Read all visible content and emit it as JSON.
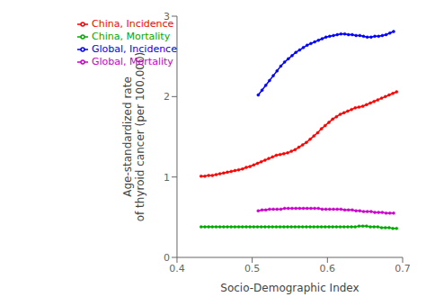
{
  "chart_data": {
    "type": "line",
    "xlabel": "Socio-Demographic Index",
    "ylabel": "Age-standardized rate\nof thyroid cancer (per 100,000)",
    "xlim": [
      0.4,
      0.7
    ],
    "ylim": [
      0,
      3
    ],
    "xticks": [
      0.4,
      0.5,
      0.6,
      0.7
    ],
    "yticks": [
      0,
      1,
      2,
      3
    ],
    "grid": false,
    "legend": "upper left",
    "marker": "point",
    "series": [
      {
        "name": "Global, Incidence",
        "color": "#0000ff",
        "x": [
          0.508,
          0.513,
          0.518,
          0.523,
          0.528,
          0.533,
          0.538,
          0.543,
          0.548,
          0.553,
          0.558,
          0.563,
          0.568,
          0.573,
          0.578,
          0.583,
          0.588,
          0.593,
          0.598,
          0.603,
          0.608,
          0.613,
          0.618,
          0.623,
          0.628,
          0.633,
          0.638,
          0.643,
          0.648,
          0.653,
          0.658,
          0.663,
          0.668,
          0.673,
          0.678,
          0.683,
          0.688
        ],
        "values": [
          2.02,
          2.08,
          2.14,
          2.2,
          2.26,
          2.32,
          2.38,
          2.43,
          2.47,
          2.51,
          2.55,
          2.58,
          2.61,
          2.64,
          2.66,
          2.68,
          2.7,
          2.72,
          2.74,
          2.75,
          2.76,
          2.77,
          2.78,
          2.78,
          2.77,
          2.77,
          2.76,
          2.76,
          2.75,
          2.74,
          2.74,
          2.75,
          2.75,
          2.76,
          2.77,
          2.79,
          2.81
        ]
      },
      {
        "name": "China, Incidence",
        "color": "#ff0000",
        "x": [
          0.432,
          0.437,
          0.442,
          0.447,
          0.452,
          0.457,
          0.462,
          0.467,
          0.472,
          0.477,
          0.482,
          0.487,
          0.492,
          0.497,
          0.502,
          0.507,
          0.512,
          0.517,
          0.522,
          0.527,
          0.532,
          0.537,
          0.542,
          0.547,
          0.552,
          0.557,
          0.562,
          0.567,
          0.572,
          0.577,
          0.582,
          0.587,
          0.592,
          0.597,
          0.602,
          0.607,
          0.612,
          0.617,
          0.622,
          0.627,
          0.632,
          0.637,
          0.642,
          0.647,
          0.652,
          0.657,
          0.662,
          0.667,
          0.672,
          0.677,
          0.682,
          0.687,
          0.692
        ],
        "values": [
          1.01,
          1.01,
          1.02,
          1.02,
          1.03,
          1.04,
          1.05,
          1.06,
          1.07,
          1.08,
          1.09,
          1.1,
          1.12,
          1.13,
          1.15,
          1.17,
          1.19,
          1.21,
          1.23,
          1.25,
          1.27,
          1.28,
          1.29,
          1.3,
          1.32,
          1.34,
          1.37,
          1.4,
          1.43,
          1.47,
          1.51,
          1.55,
          1.6,
          1.64,
          1.68,
          1.72,
          1.75,
          1.78,
          1.8,
          1.82,
          1.84,
          1.86,
          1.87,
          1.88,
          1.9,
          1.92,
          1.94,
          1.96,
          1.98,
          2.0,
          2.02,
          2.04,
          2.06
        ]
      },
      {
        "name": "China, Mortality",
        "color": "#00aa00",
        "x": [
          0.432,
          0.437,
          0.442,
          0.447,
          0.452,
          0.457,
          0.462,
          0.467,
          0.472,
          0.477,
          0.482,
          0.487,
          0.492,
          0.497,
          0.502,
          0.507,
          0.512,
          0.517,
          0.522,
          0.527,
          0.532,
          0.537,
          0.542,
          0.547,
          0.552,
          0.557,
          0.562,
          0.567,
          0.572,
          0.577,
          0.582,
          0.587,
          0.592,
          0.597,
          0.602,
          0.607,
          0.612,
          0.617,
          0.622,
          0.627,
          0.632,
          0.637,
          0.642,
          0.647,
          0.652,
          0.657,
          0.662,
          0.667,
          0.672,
          0.677,
          0.682,
          0.687,
          0.692
        ],
        "values": [
          0.38,
          0.38,
          0.38,
          0.38,
          0.38,
          0.38,
          0.38,
          0.38,
          0.38,
          0.38,
          0.38,
          0.38,
          0.38,
          0.38,
          0.38,
          0.38,
          0.38,
          0.38,
          0.38,
          0.38,
          0.38,
          0.38,
          0.38,
          0.38,
          0.38,
          0.38,
          0.38,
          0.38,
          0.38,
          0.38,
          0.38,
          0.38,
          0.38,
          0.38,
          0.38,
          0.38,
          0.38,
          0.38,
          0.38,
          0.38,
          0.38,
          0.38,
          0.39,
          0.39,
          0.39,
          0.38,
          0.38,
          0.38,
          0.37,
          0.37,
          0.37,
          0.36,
          0.36
        ]
      },
      {
        "name": "Global, Mortality",
        "color": "#cc00cc",
        "x": [
          0.508,
          0.513,
          0.518,
          0.523,
          0.528,
          0.533,
          0.538,
          0.543,
          0.548,
          0.553,
          0.558,
          0.563,
          0.568,
          0.573,
          0.578,
          0.583,
          0.588,
          0.593,
          0.598,
          0.603,
          0.608,
          0.613,
          0.618,
          0.623,
          0.628,
          0.633,
          0.638,
          0.643,
          0.648,
          0.653,
          0.658,
          0.663,
          0.668,
          0.673,
          0.678,
          0.683,
          0.688
        ],
        "values": [
          0.58,
          0.59,
          0.59,
          0.6,
          0.6,
          0.6,
          0.6,
          0.61,
          0.61,
          0.61,
          0.61,
          0.61,
          0.61,
          0.61,
          0.61,
          0.61,
          0.61,
          0.6,
          0.6,
          0.6,
          0.6,
          0.6,
          0.6,
          0.59,
          0.59,
          0.59,
          0.58,
          0.58,
          0.57,
          0.57,
          0.57,
          0.56,
          0.56,
          0.56,
          0.55,
          0.55,
          0.55
        ]
      }
    ]
  }
}
